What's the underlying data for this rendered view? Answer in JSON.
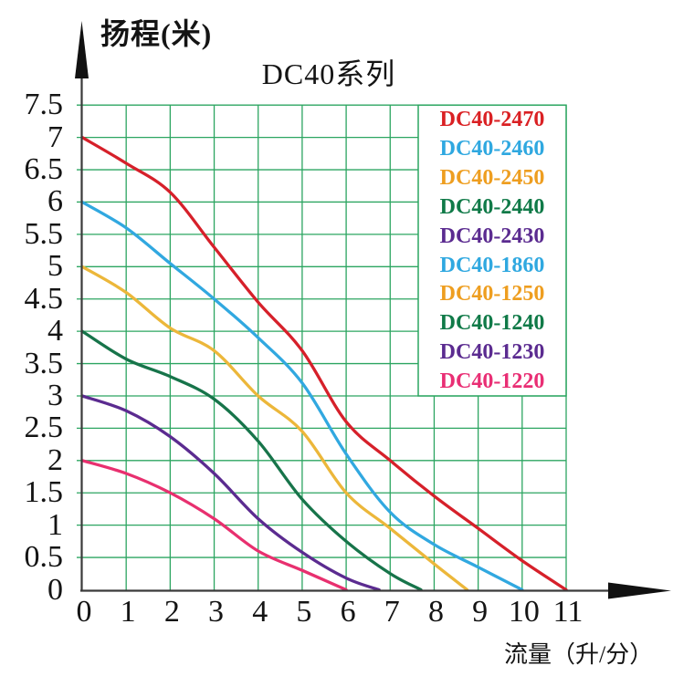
{
  "page": {
    "title": "DC40系列",
    "y_axis_label": "扬程(米)",
    "x_axis_label": "流量（升/分）"
  },
  "colors": {
    "grid": "#2ca561",
    "axis": "#3a3a3a",
    "arrow": "#111111",
    "text": "#141414",
    "legend_border": "#2ca561",
    "legend_bg": "#ffffff"
  },
  "legend": {
    "position": "upper right",
    "items": [
      {
        "label": "DC40-2470",
        "color": "#da2023"
      },
      {
        "label": "DC40-2460",
        "color": "#2fa8e0"
      },
      {
        "label": "DC40-2450",
        "color": "#ee9e20"
      },
      {
        "label": "DC40-2440",
        "color": "#107a48"
      },
      {
        "label": "DC40-2430",
        "color": "#5b2b90"
      },
      {
        "label": "DC40-1860",
        "color": "#2fa8e0"
      },
      {
        "label": "DC40-1250",
        "color": "#ee9e20"
      },
      {
        "label": "DC40-1240",
        "color": "#107a48"
      },
      {
        "label": "DC40-1230",
        "color": "#5b2b90"
      },
      {
        "label": "DC40-1220",
        "color": "#e92e74"
      }
    ]
  },
  "chart_data": {
    "type": "line",
    "title": "DC40系列",
    "xlabel": "流量（升/分）",
    "ylabel": "扬程(米)",
    "xlim": [
      0,
      11
    ],
    "ylim": [
      0,
      7.5
    ],
    "grid": true,
    "x_tick_labels": [
      "0",
      "1",
      "2",
      "3",
      "4",
      "5",
      "6",
      "7",
      "8",
      "9",
      "10",
      "11"
    ],
    "y_tick_labels": [
      "0",
      "0.5",
      "1",
      "1.5",
      "2",
      "2.5",
      "3",
      "3.5",
      "4",
      "4.5",
      "5",
      "5.5",
      "6",
      "6.5",
      "7",
      "7.5"
    ],
    "legend_position": "upper right",
    "series": [
      {
        "name": "DC40-2470",
        "legend_labels": [
          "DC40-2470"
        ],
        "color": "#d6202a",
        "points": [
          [
            0,
            7
          ],
          [
            1,
            6.6
          ],
          [
            2,
            6.15
          ],
          [
            3,
            5.3
          ],
          [
            4,
            4.45
          ],
          [
            5,
            3.7
          ],
          [
            6,
            2.6
          ],
          [
            7,
            2.0
          ],
          [
            8,
            1.45
          ],
          [
            9,
            0.95
          ],
          [
            10,
            0.45
          ],
          [
            11,
            0
          ]
        ]
      },
      {
        "name": "DC40-2460 / DC40-1860",
        "legend_labels": [
          "DC40-2460",
          "DC40-1860"
        ],
        "color": "#31a8e0",
        "points": [
          [
            0,
            6
          ],
          [
            1,
            5.6
          ],
          [
            2,
            5.05
          ],
          [
            3,
            4.5
          ],
          [
            4,
            3.9
          ],
          [
            5,
            3.2
          ],
          [
            6,
            2.1
          ],
          [
            7,
            1.2
          ],
          [
            8,
            0.7
          ],
          [
            9,
            0.35
          ],
          [
            10,
            0
          ]
        ]
      },
      {
        "name": "DC40-2450 / DC40-1250",
        "legend_labels": [
          "DC40-2450",
          "DC40-1250"
        ],
        "color": "#ecb73a",
        "points": [
          [
            0,
            5
          ],
          [
            1,
            4.6
          ],
          [
            2,
            4.05
          ],
          [
            3,
            3.7
          ],
          [
            4,
            3.0
          ],
          [
            5,
            2.45
          ],
          [
            6,
            1.5
          ],
          [
            7,
            0.95
          ],
          [
            8,
            0.4
          ],
          [
            8.75,
            0
          ]
        ]
      },
      {
        "name": "DC40-2440 / DC40-1240",
        "legend_labels": [
          "DC40-2440",
          "DC40-1240"
        ],
        "color": "#17744a",
        "points": [
          [
            0,
            4
          ],
          [
            1,
            3.57
          ],
          [
            2,
            3.3
          ],
          [
            3,
            2.95
          ],
          [
            4,
            2.3
          ],
          [
            5,
            1.4
          ],
          [
            6,
            0.75
          ],
          [
            7,
            0.25
          ],
          [
            7.7,
            0
          ]
        ]
      },
      {
        "name": "DC40-2430 / DC40-1230",
        "legend_labels": [
          "DC40-2430",
          "DC40-1230"
        ],
        "color": "#5b2b90",
        "points": [
          [
            0,
            3
          ],
          [
            1,
            2.77
          ],
          [
            2,
            2.37
          ],
          [
            3,
            1.8
          ],
          [
            4,
            1.1
          ],
          [
            5,
            0.58
          ],
          [
            6,
            0.18
          ],
          [
            6.75,
            0
          ]
        ]
      },
      {
        "name": "DC40-1220",
        "legend_labels": [
          "DC40-1220"
        ],
        "color": "#e8306f",
        "points": [
          [
            0,
            2
          ],
          [
            1,
            1.8
          ],
          [
            2,
            1.5
          ],
          [
            3,
            1.1
          ],
          [
            4,
            0.6
          ],
          [
            5,
            0.3
          ],
          [
            6,
            0
          ]
        ]
      }
    ]
  }
}
